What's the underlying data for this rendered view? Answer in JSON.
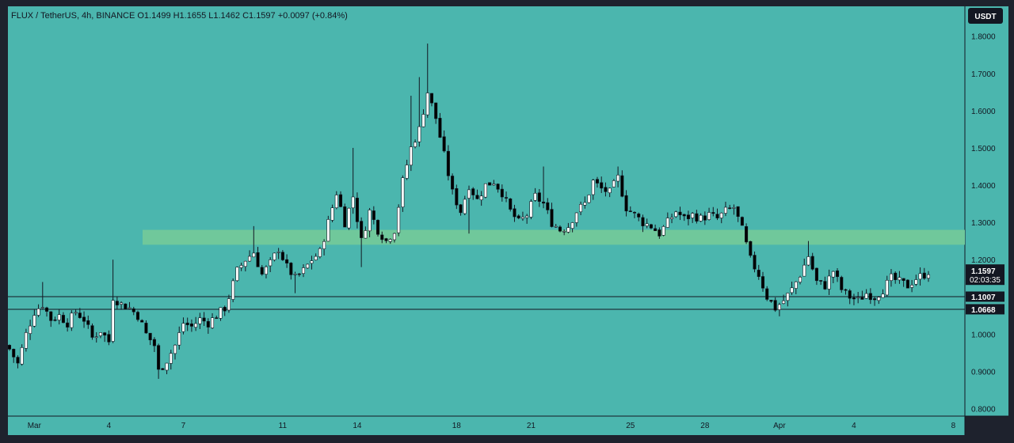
{
  "header": {
    "symbol": "FLUX",
    "quote": "TetherUS",
    "interval": "4h",
    "exchange": "BINANCE",
    "ohlc_text": "O1.1499  H1.1655  L1.1462  C1.1597  +0.0097 (+0.84%)",
    "legend_full": "FLUX / TetherUS, 4h, BINANCE  O1.1499  H1.1655  L1.1462  C1.1597  +0.0097 (+0.84%)"
  },
  "currency_button": "USDT",
  "colors": {
    "background": "#4bb6ae",
    "frame": "#1e222d",
    "zone": "#70c89b",
    "candle_up": "#ffffff",
    "candle_down": "#000000",
    "wick": "#131722",
    "badge": "#131722"
  },
  "price_badges": {
    "last_price": "1.1597",
    "countdown": "02:03:35",
    "level_1": "1.1007",
    "level_2": "1.0668"
  },
  "chart_data": {
    "type": "candlestick",
    "title": "FLUX / TetherUS, 4h, BINANCE",
    "ylim": [
      0.78,
      1.88
    ],
    "y_ticks": [
      "1.8000",
      "1.7000",
      "1.6000",
      "1.5000",
      "1.4000",
      "1.3000",
      "1.2000",
      "1.1000",
      "1.0000",
      "0.9000",
      "0.8000"
    ],
    "x_ticks": [
      {
        "label": "Mar",
        "t": 6
      },
      {
        "label": "4",
        "t": 24
      },
      {
        "label": "7",
        "t": 42
      },
      {
        "label": "11",
        "t": 66
      },
      {
        "label": "14",
        "t": 84
      },
      {
        "label": "18",
        "t": 108
      },
      {
        "label": "21",
        "t": 126
      },
      {
        "label": "25",
        "t": 150
      },
      {
        "label": "28",
        "t": 168
      },
      {
        "label": "Apr",
        "t": 186
      },
      {
        "label": "4",
        "t": 204
      },
      {
        "label": "8",
        "t": 228
      }
    ],
    "zone": {
      "low": 1.24,
      "high": 1.28
    },
    "horizontal_levels": [
      1.1007,
      1.0668
    ],
    "last_close": 1.1597,
    "close_path": [
      [
        0,
        0.96
      ],
      [
        2,
        0.92
      ],
      [
        4,
        1.0
      ],
      [
        6,
        1.06
      ],
      [
        8,
        1.08
      ],
      [
        10,
        1.04
      ],
      [
        12,
        1.05
      ],
      [
        14,
        1.03
      ],
      [
        16,
        1.06
      ],
      [
        18,
        1.04
      ],
      [
        20,
        0.99
      ],
      [
        22,
        1.01
      ],
      [
        24,
        0.98
      ],
      [
        25,
        1.1
      ],
      [
        27,
        1.08
      ],
      [
        29,
        1.07
      ],
      [
        31,
        1.05
      ],
      [
        33,
        1.0
      ],
      [
        35,
        0.97
      ],
      [
        36,
        0.9
      ],
      [
        38,
        0.93
      ],
      [
        40,
        0.97
      ],
      [
        42,
        1.03
      ],
      [
        44,
        1.02
      ],
      [
        46,
        1.04
      ],
      [
        48,
        1.03
      ],
      [
        50,
        1.05
      ],
      [
        52,
        1.07
      ],
      [
        53,
        1.1
      ],
      [
        55,
        1.17
      ],
      [
        57,
        1.2
      ],
      [
        59,
        1.22
      ],
      [
        61,
        1.16
      ],
      [
        63,
        1.19
      ],
      [
        65,
        1.23
      ],
      [
        67,
        1.18
      ],
      [
        69,
        1.15
      ],
      [
        71,
        1.17
      ],
      [
        73,
        1.2
      ],
      [
        75,
        1.22
      ],
      [
        77,
        1.3
      ],
      [
        79,
        1.38
      ],
      [
        81,
        1.3
      ],
      [
        83,
        1.37
      ],
      [
        85,
        1.25
      ],
      [
        87,
        1.33
      ],
      [
        89,
        1.28
      ],
      [
        91,
        1.25
      ],
      [
        93,
        1.28
      ],
      [
        95,
        1.41
      ],
      [
        97,
        1.5
      ],
      [
        99,
        1.55
      ],
      [
        101,
        1.65
      ],
      [
        103,
        1.58
      ],
      [
        105,
        1.48
      ],
      [
        107,
        1.38
      ],
      [
        109,
        1.33
      ],
      [
        111,
        1.4
      ],
      [
        113,
        1.36
      ],
      [
        115,
        1.4
      ],
      [
        117,
        1.41
      ],
      [
        119,
        1.38
      ],
      [
        121,
        1.33
      ],
      [
        123,
        1.3
      ],
      [
        125,
        1.32
      ],
      [
        127,
        1.37
      ],
      [
        129,
        1.35
      ],
      [
        131,
        1.3
      ],
      [
        133,
        1.28
      ],
      [
        135,
        1.29
      ],
      [
        137,
        1.33
      ],
      [
        139,
        1.35
      ],
      [
        141,
        1.41
      ],
      [
        143,
        1.39
      ],
      [
        145,
        1.38
      ],
      [
        147,
        1.42
      ],
      [
        149,
        1.34
      ],
      [
        151,
        1.32
      ],
      [
        153,
        1.3
      ],
      [
        155,
        1.29
      ],
      [
        157,
        1.27
      ],
      [
        159,
        1.3
      ],
      [
        161,
        1.33
      ],
      [
        163,
        1.31
      ],
      [
        165,
        1.32
      ],
      [
        167,
        1.31
      ],
      [
        169,
        1.32
      ],
      [
        171,
        1.31
      ],
      [
        173,
        1.33
      ],
      [
        175,
        1.34
      ],
      [
        177,
        1.28
      ],
      [
        179,
        1.2
      ],
      [
        181,
        1.16
      ],
      [
        183,
        1.1
      ],
      [
        185,
        1.07
      ],
      [
        187,
        1.09
      ],
      [
        189,
        1.12
      ],
      [
        191,
        1.16
      ],
      [
        193,
        1.21
      ],
      [
        195,
        1.14
      ],
      [
        197,
        1.13
      ],
      [
        199,
        1.17
      ],
      [
        201,
        1.12
      ],
      [
        203,
        1.1
      ],
      [
        205,
        1.09
      ],
      [
        207,
        1.11
      ],
      [
        209,
        1.1
      ],
      [
        211,
        1.12
      ],
      [
        213,
        1.15
      ],
      [
        215,
        1.14
      ],
      [
        217,
        1.13
      ],
      [
        219,
        1.15
      ],
      [
        221,
        1.16
      ],
      [
        222,
        1.1597
      ]
    ],
    "wick_spikes": [
      {
        "t": 8,
        "high": 1.14
      },
      {
        "t": 25,
        "high": 1.2
      },
      {
        "t": 36,
        "low": 0.88
      },
      {
        "t": 59,
        "high": 1.29
      },
      {
        "t": 69,
        "low": 1.11
      },
      {
        "t": 83,
        "high": 1.5
      },
      {
        "t": 85,
        "low": 1.18
      },
      {
        "t": 97,
        "high": 1.64
      },
      {
        "t": 99,
        "high": 1.69
      },
      {
        "t": 101,
        "high": 1.78
      },
      {
        "t": 111,
        "low": 1.27
      },
      {
        "t": 129,
        "high": 1.45
      },
      {
        "t": 147,
        "high": 1.45
      },
      {
        "t": 185,
        "low": 1.06
      },
      {
        "t": 193,
        "high": 1.25
      }
    ]
  }
}
